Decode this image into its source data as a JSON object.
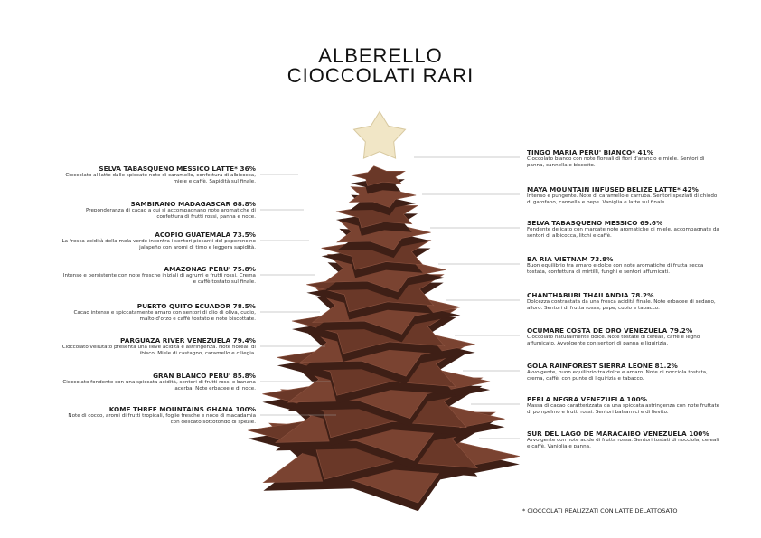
{
  "header": {
    "title": [
      "ALBERELLO",
      "CIOCCOLATI RARI"
    ]
  },
  "left_items": [
    {
      "title": "SELVA TABASQUENO MESSICO LATTE* 36%",
      "description": "Cioccolato al latte dalle spiccate note di caramello, confettura di albicocca, miele e caffè. Sapidità sul finale."
    },
    {
      "title": "SAMBIRANO MADAGASCAR 68.8%",
      "description": "Preponderanza di cacao a cui si accompagnano note aromatiche di confettura di frutti rossi, panna e noce."
    },
    {
      "title": "ACOPIO GUATEMALA 73.5%",
      "description": "La fresca acidità della mela verde incontra i sentori piccanti del peperoncino jalapeño con aromi di timo e leggera sapidità."
    },
    {
      "title": "AMAZONAS PERU' 75.8%",
      "description": "Intenso e persistente con note fresche iniziali di agrumi e frutti rossi. Crema e caffè tostato sul finale."
    },
    {
      "title": "PUERTO QUITO ECUADOR 78.5%",
      "description": "Cacao intenso e spiccatamente amaro con sentori di olio di oliva, cuoio, malto d'orzo e caffè tostato e note biscottate."
    },
    {
      "title": "PARGUAZA RIVER VENEZUELA 79.4%",
      "description": "Cioccolato vellutato presenta una lieve acidità e astringenza. Note floreali di ibisco. Miele di castagno, caramello e ciliegia."
    },
    {
      "title": "GRAN BLANCO PERU' 85.8%",
      "description": "Cioccolato fondente con una spiccata acidità, sentori di frutti rossi e banana acerba. Note erbacee e di noce."
    },
    {
      "title": "KOME THREE MOUNTAINS GHANA 100%",
      "description": "Note di cocco, aromi di frutti tropicali, foglie fresche e noce di macadamia con delicato sottotondo di spezie."
    }
  ],
  "right_items": [
    {
      "title": "TINGO MARIA PERU' BIANCO* 41%",
      "description": "Cioccolato bianco con note floreali di fiori d'arancio e miele. Sentori di panna, cannella e biscotto."
    },
    {
      "title": "MAYA MOUNTAIN INFUSED BELIZE LATTE* 42%",
      "description": "Intenso e pungente. Note di caramello e carruba. Sentori speziati di chiodo di garofano, cannella e pepe. Vaniglia e latte sul finale."
    },
    {
      "title": "SELVA TABASQUENO MESSICO 69.6%",
      "description": "Fondente delicato con marcate note aromatiche di miele, accompagnate da sentori di albicocca, litchi e caffè."
    },
    {
      "title": "BA RIA VIETNAM 73.8%",
      "description": "Buon equilibrio tra amaro e dolce con note aromatiche di frutta secca tostata, confettura di mirtilli, funghi e sentori affumicati."
    },
    {
      "title": "CHANTHABURI THAILANDIA 78.2%",
      "description": "Dolcezza contrastata da una fresca acidità finale. Note erbacee di sedano, alloro. Sentori di frutta rossa, pepe, cuoio e tabacco."
    },
    {
      "title": "OCUMARE COSTA DE ORO VENEZUELA 79.2%",
      "description": "Cioccolato naturalmente dolce. Note tostate di cereali, caffè e legno affumicato. Avvolgente con sentori di panna e liquirizia."
    },
    {
      "title": "GOLA RAINFOREST SIERRA LEONE 81.2%",
      "description": "Avvolgente, buon equilibrio tra dolce e amaro. Note di nocciola tostata, crema, caffè, con punte di liquirizia e tabacco."
    },
    {
      "title": "PERLA NEGRA VENEZUELA 100%",
      "description": "Massa di cacao caratterizzata da una spiccata astringenza con note fruttate di pompelmo e frutti rossi. Sentori balsamici e di lievito."
    },
    {
      "title": "SUR DEL LAGO DE MARACAIBO VENEZUELA 100%",
      "description": "Avvolgente con note acide di frutta rossa. Sentori tostati di nocciola, cereali e caffè. Vaniglia e panna."
    }
  ],
  "footnote": "* CIOCCOLATI REALIZZATI CON LATTE DELATTOSATO"
}
